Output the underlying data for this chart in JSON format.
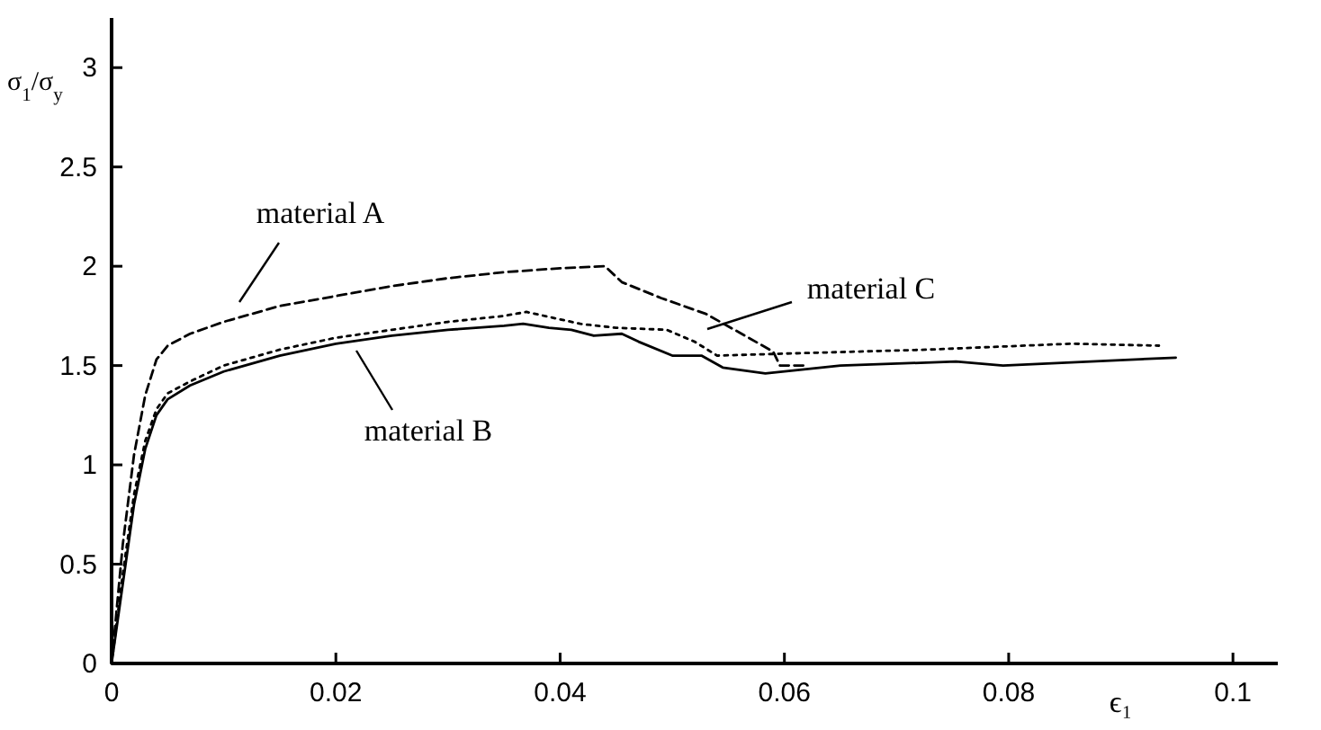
{
  "chart_data": {
    "type": "line",
    "xlabel": "ϵ₁",
    "ylabel": "σ$_{1}$/σ$_{y}$",
    "xlim": [
      0,
      0.104
    ],
    "ylim": [
      0,
      3.25
    ],
    "xticks": [
      0,
      0.02,
      0.04,
      0.06,
      0.08,
      0.1
    ],
    "yticks": [
      0,
      0.5,
      1,
      1.5,
      2,
      2.5,
      3
    ],
    "grid": false,
    "marker": "none",
    "series": [
      {
        "name": "material A",
        "color": "#000000",
        "line_style": "dashed",
        "x": [
          0,
          0.001,
          0.002,
          0.003,
          0.004,
          0.005,
          0.007,
          0.01,
          0.015,
          0.02,
          0.025,
          0.03,
          0.035,
          0.04,
          0.044,
          0.0455,
          0.049,
          0.053,
          0.0565,
          0.059,
          0.0596,
          0.062
        ],
        "values": [
          0,
          0.6,
          1.05,
          1.35,
          1.53,
          1.6,
          1.66,
          1.72,
          1.8,
          1.85,
          1.9,
          1.94,
          1.97,
          1.99,
          2.0,
          1.92,
          1.84,
          1.76,
          1.65,
          1.57,
          1.5,
          1.5
        ]
      },
      {
        "name": "material B",
        "color": "#000000",
        "line_style": "solid",
        "x": [
          0,
          0.001,
          0.002,
          0.003,
          0.004,
          0.005,
          0.007,
          0.01,
          0.015,
          0.02,
          0.025,
          0.03,
          0.035,
          0.0367,
          0.039,
          0.041,
          0.043,
          0.0455,
          0.047,
          0.05,
          0.0526,
          0.0545,
          0.0583,
          0.065,
          0.0753,
          0.0795,
          0.0949
        ],
        "values": [
          0,
          0.4,
          0.8,
          1.08,
          1.25,
          1.33,
          1.4,
          1.47,
          1.55,
          1.61,
          1.65,
          1.68,
          1.7,
          1.71,
          1.69,
          1.68,
          1.65,
          1.66,
          1.62,
          1.55,
          1.55,
          1.49,
          1.46,
          1.5,
          1.52,
          1.5,
          1.54
        ]
      },
      {
        "name": "material C",
        "color": "#000000",
        "line_style": "dotted",
        "x": [
          0,
          0.001,
          0.002,
          0.003,
          0.004,
          0.005,
          0.007,
          0.01,
          0.015,
          0.02,
          0.025,
          0.03,
          0.035,
          0.037,
          0.0418,
          0.045,
          0.0495,
          0.052,
          0.054,
          0.06,
          0.0727,
          0.0856,
          0.0934
        ],
        "values": [
          0,
          0.45,
          0.85,
          1.12,
          1.28,
          1.36,
          1.42,
          1.5,
          1.58,
          1.64,
          1.68,
          1.72,
          1.75,
          1.77,
          1.71,
          1.69,
          1.68,
          1.62,
          1.55,
          1.56,
          1.58,
          1.61,
          1.6
        ]
      }
    ]
  }
}
